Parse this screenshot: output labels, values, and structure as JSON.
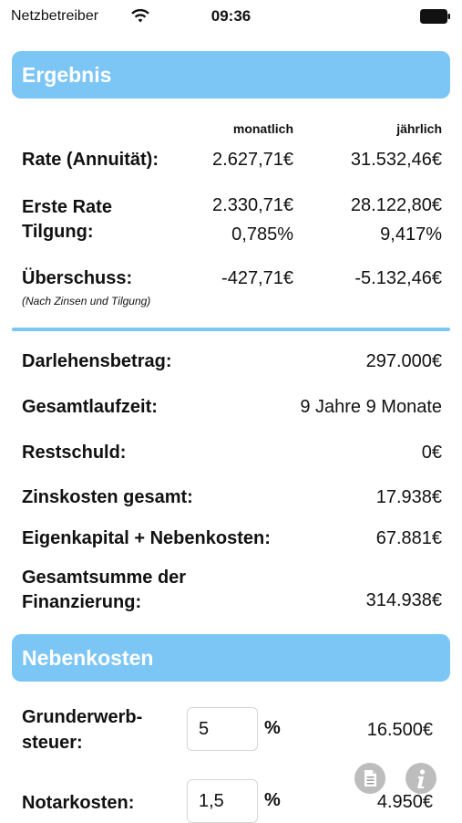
{
  "status_bar": {
    "carrier": "Netzbetreiber",
    "time": "09:36"
  },
  "ergebnis": {
    "title": "Ergebnis",
    "col_monthly": "monatlich",
    "col_yearly": "jährlich",
    "rate_label": "Rate (Annuität):",
    "rate_monthly": "2.627,71€",
    "rate_yearly": "31.532,46€",
    "erste_rate_label": "Erste Rate",
    "tilgung_label": "Tilgung:",
    "erste_rate_monthly": "2.330,71€",
    "erste_rate_yearly": "28.122,80€",
    "tilgung_monthly": "0,785%",
    "tilgung_yearly": "9,417%",
    "ueberschuss_label": "Überschuss:",
    "ueberschuss_note": "(Nach Zinsen und Tilgung)",
    "ueberschuss_monthly": "-427,71€",
    "ueberschuss_yearly": "-5.132,46€"
  },
  "summary": {
    "darlehen_label": "Darlehensbetrag:",
    "darlehen_value": "297.000€",
    "laufzeit_label": "Gesamtlaufzeit:",
    "laufzeit_value": "9 Jahre 9 Monate",
    "restschuld_label": "Restschuld:",
    "restschuld_value": "0€",
    "zinskosten_label": "Zinskosten gesamt:",
    "zinskosten_value": "17.938€",
    "eigenkapital_label": "Eigenkapital + Nebenkosten:",
    "eigenkapital_value": "67.881€",
    "gesamtsumme_label_1": "Gesamtsumme der",
    "gesamtsumme_label_2": "Finanzierung:",
    "gesamtsumme_value": "314.938€"
  },
  "nebenkosten": {
    "title": "Nebenkosten",
    "grunderwerb_label_1": "Grunderwerb-",
    "grunderwerb_label_2": "steuer:",
    "grunderwerb_input": "5",
    "grunderwerb_unit": "%",
    "grunderwerb_value": "16.500€",
    "notar_label": "Notarkosten:",
    "notar_input": "1,5",
    "notar_unit": "%",
    "notar_value": "4.950€"
  },
  "icons": {
    "document": "document-icon",
    "info": "info-icon"
  }
}
